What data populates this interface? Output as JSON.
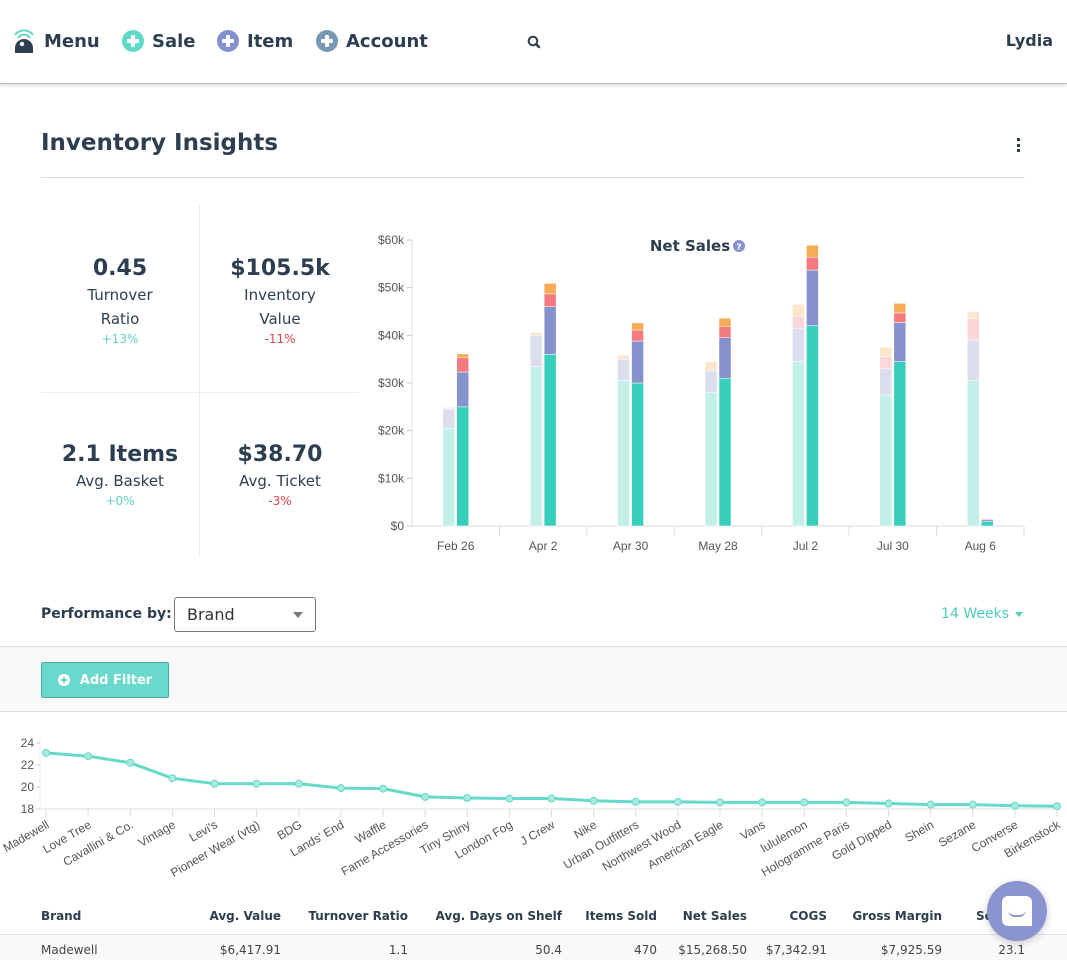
{
  "nav": {
    "menu_label": "Menu",
    "sale_label": "Sale",
    "item_label": "Item",
    "account_label": "Account",
    "user_name": "Lydia",
    "colors": {
      "sale": "#5fd9c8",
      "item": "#8590ce",
      "account": "#7897b0"
    }
  },
  "page": {
    "title": "Inventory Insights"
  },
  "kpis": [
    {
      "value": "0.45",
      "label_line1": "Turnover",
      "label_line2": "Ratio",
      "change": "+13%",
      "trend": "positive"
    },
    {
      "value": "$105.5k",
      "label_line1": "Inventory",
      "label_line2": "Value",
      "change": "-11%",
      "trend": "negative"
    },
    {
      "value": "2.1 Items",
      "label_line1": "Avg. Basket",
      "label_line2": "",
      "change": "+0%",
      "trend": "positive"
    },
    {
      "value": "$38.70",
      "label_line1": "Avg. Ticket",
      "label_line2": "",
      "change": "-3%",
      "trend": "negative"
    }
  ],
  "performance": {
    "label": "Performance by:",
    "selected": "Brand",
    "period": "14 Weeks",
    "add_filter_label": "Add Filter"
  },
  "chart_data": [
    {
      "type": "bar",
      "title": "Net Sales",
      "stacked": true,
      "paired": "previous period (faded) vs current period (solid)",
      "categories": [
        "Feb 26",
        "Apr 2",
        "Apr 30",
        "May 28",
        "Jul 2",
        "Jul 30",
        "Aug 6"
      ],
      "ylim": [
        0,
        60000
      ],
      "yticks": [
        "$0",
        "$10k",
        "$20k",
        "$30k",
        "$40k",
        "$50k",
        "$60k"
      ],
      "segment_colors_current": [
        "#37cfbb",
        "#8592cb",
        "#f47a80",
        "#f7ab54"
      ],
      "segment_colors_previous": [
        "#c3efe9",
        "#dcdeee",
        "#fbd6da",
        "#fde5cc"
      ],
      "series_previous": [
        {
          "name": "segment-1",
          "values": [
            20500,
            33500,
            30500,
            28000,
            34500,
            27500,
            30500
          ]
        },
        {
          "name": "segment-2",
          "values": [
            4000,
            6500,
            4500,
            4500,
            7000,
            5500,
            8500
          ]
        },
        {
          "name": "segment-3",
          "values": [
            200,
            0,
            0,
            0,
            2500,
            2500,
            4500
          ]
        },
        {
          "name": "segment-4",
          "values": [
            200,
            600,
            800,
            2000,
            2500,
            2000,
            1500
          ]
        }
      ],
      "series_current": [
        {
          "name": "segment-1",
          "values": [
            25000,
            36000,
            30000,
            31000,
            42000,
            34500,
            1000
          ]
        },
        {
          "name": "segment-2",
          "values": [
            7300,
            10000,
            8800,
            8500,
            11700,
            8200,
            300
          ]
        },
        {
          "name": "segment-3",
          "values": [
            3000,
            2700,
            2300,
            2300,
            2700,
            2000,
            200
          ]
        },
        {
          "name": "segment-4",
          "values": [
            800,
            2200,
            1500,
            1800,
            2500,
            2000,
            100
          ]
        }
      ]
    },
    {
      "type": "line",
      "title": "",
      "ylim": [
        18,
        24
      ],
      "yticks": [
        18,
        20,
        22,
        24
      ],
      "color": "#66d9c8",
      "categories": [
        "Madewell",
        "Love Tree",
        "Cavallini & Co.",
        "Vintage",
        "Levi's",
        "Pioneer Wear (vtg)",
        "BDG",
        "Lands' End",
        "Waffle",
        "Fame Accessories",
        "Tiny Shiny",
        "London Fog",
        "J Crew",
        "Nike",
        "Urban Outfitters",
        "Northwest Wood",
        "American Eagle",
        "Vans",
        "lululemon",
        "Hologramme Paris",
        "Gold Dipped",
        "Shein",
        "Sezane",
        "Converse",
        "Birkenstock"
      ],
      "values": [
        23.1,
        22.8,
        22.2,
        20.8,
        20.3,
        20.3,
        20.3,
        19.9,
        19.85,
        19.1,
        19.0,
        18.95,
        18.95,
        18.75,
        18.65,
        18.65,
        18.6,
        18.6,
        18.6,
        18.6,
        18.5,
        18.4,
        18.4,
        18.3,
        18.25
      ]
    }
  ],
  "table": {
    "headers": [
      "Brand",
      "Avg. Value",
      "Turnover Ratio",
      "Avg. Days on Shelf",
      "Items Sold",
      "Net Sales",
      "COGS",
      "Gross Margin",
      "So"
    ],
    "rows": [
      [
        "Madewell",
        "$6,417.91",
        "1.1",
        "50.4",
        "470",
        "$15,268.50",
        "$7,342.91",
        "$7,925.59",
        "23.1"
      ]
    ]
  }
}
